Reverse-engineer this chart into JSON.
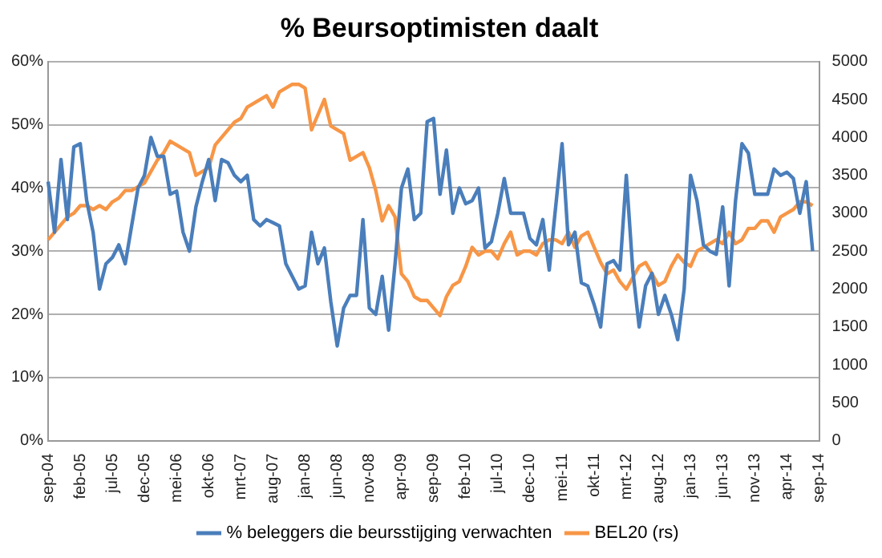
{
  "chart_data": {
    "type": "line",
    "title": "% Beursoptimisten daalt",
    "categories": [
      "sep-04",
      null,
      null,
      null,
      null,
      "feb-05",
      null,
      null,
      null,
      null,
      "jul-05",
      null,
      null,
      null,
      null,
      "dec-05",
      null,
      null,
      null,
      null,
      "mei-06",
      null,
      null,
      null,
      null,
      "okt-06",
      null,
      null,
      null,
      null,
      "mrt-07",
      null,
      null,
      null,
      null,
      "aug-07",
      null,
      null,
      null,
      null,
      "jan-08",
      null,
      null,
      null,
      null,
      "jun-08",
      null,
      null,
      null,
      null,
      "nov-08",
      null,
      null,
      null,
      null,
      "apr-09",
      null,
      null,
      null,
      null,
      "sep-09",
      null,
      null,
      null,
      null,
      "feb-10",
      null,
      null,
      null,
      null,
      "jul-10",
      null,
      null,
      null,
      null,
      "dec-10",
      null,
      null,
      null,
      null,
      "mei-11",
      null,
      null,
      null,
      null,
      "okt-11",
      null,
      null,
      null,
      null,
      "mrt-12",
      null,
      null,
      null,
      null,
      "aug-12",
      null,
      null,
      null,
      null,
      "jan-13",
      null,
      null,
      null,
      null,
      "jun-13",
      null,
      null,
      null,
      null,
      "nov-13",
      null,
      null,
      null,
      null,
      "apr-14",
      null,
      null,
      null,
      null,
      "sep-14"
    ],
    "series": [
      {
        "name": "% beleggers die beursstijging verwachten",
        "color": "#4a7ebb",
        "values": [
          41,
          33,
          44.5,
          35,
          46.5,
          47,
          38,
          33,
          24,
          28,
          29,
          31,
          28,
          34,
          40,
          42,
          48,
          45,
          45,
          39,
          39.5,
          33,
          30,
          37,
          41,
          44.5,
          38,
          44.5,
          44,
          42,
          41,
          42,
          35,
          34,
          35,
          34.5,
          34,
          28,
          26,
          24,
          24.5,
          33,
          28,
          30.5,
          22,
          15,
          21,
          23,
          23,
          35,
          21,
          20,
          26,
          17.5,
          28,
          40,
          43,
          35,
          36,
          50.5,
          51,
          39,
          46,
          36,
          40,
          37.5,
          38,
          40,
          30.5,
          31.5,
          36,
          41.5,
          36,
          36,
          36,
          32,
          31,
          35,
          27,
          37,
          47,
          31,
          33,
          25,
          24.5,
          21.5,
          18,
          28,
          28.5,
          27,
          42,
          27,
          18,
          24.5,
          26.5,
          20,
          23,
          20,
          16,
          24,
          42,
          38,
          31,
          30,
          29.5,
          37,
          24.5,
          38,
          47,
          45.5,
          39,
          39,
          39,
          43,
          42,
          42.5,
          41.5,
          36,
          41,
          30,
          null
        ]
      },
      {
        "name": "BEL20 (rs)",
        "color": "#f79646",
        "axis": "y2",
        "values": [
          2650,
          2750,
          2850,
          2950,
          3000,
          3100,
          3100,
          3050,
          3100,
          3050,
          3150,
          3200,
          3300,
          3300,
          3350,
          3400,
          3550,
          3700,
          3800,
          3950,
          3900,
          3850,
          3800,
          3500,
          3550,
          3600,
          3900,
          4000,
          4100,
          4200,
          4250,
          4400,
          4450,
          4500,
          4550,
          4400,
          4600,
          4650,
          4700,
          4700,
          4650,
          4100,
          4300,
          4500,
          4150,
          4100,
          4050,
          3700,
          3750,
          3800,
          3600,
          3300,
          2900,
          3100,
          2950,
          2200,
          2100,
          1900,
          1850,
          1850,
          1750,
          1650,
          1900,
          2050,
          2100,
          2300,
          2550,
          2450,
          2500,
          2500,
          2400,
          2600,
          2750,
          2450,
          2500,
          2500,
          2450,
          2600,
          2650,
          2650,
          2600,
          2750,
          2550,
          2700,
          2750,
          2550,
          2350,
          2200,
          2250,
          2100,
          2000,
          2150,
          2300,
          2350,
          2200,
          2050,
          2100,
          2300,
          2450,
          2350,
          2300,
          2500,
          2550,
          2600,
          2650,
          2600,
          2750,
          2600,
          2650,
          2800,
          2800,
          2900,
          2900,
          2750,
          2950,
          3000,
          3050,
          3150,
          3150,
          3100,
          null
        ]
      }
    ],
    "ylim": [
      0,
      60
    ],
    "yticks": [
      {
        "value": 0,
        "label": "0%"
      },
      {
        "value": 10,
        "label": "10%"
      },
      {
        "value": 20,
        "label": "20%"
      },
      {
        "value": 30,
        "label": "30%"
      },
      {
        "value": 40,
        "label": "40%"
      },
      {
        "value": 50,
        "label": "50%"
      },
      {
        "value": 60,
        "label": "60%"
      }
    ],
    "y2lim": [
      0,
      5000
    ],
    "y2ticks": [
      0,
      500,
      1000,
      1500,
      2000,
      2500,
      3000,
      3500,
      4000,
      4500,
      5000
    ],
    "grid": "y",
    "legend": "bottom",
    "marker": "none",
    "line_style": "solid"
  }
}
